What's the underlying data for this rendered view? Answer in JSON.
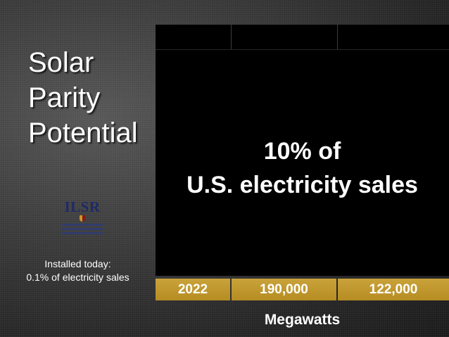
{
  "slide": {
    "title_lines": [
      "Solar",
      "Parity",
      "Potential"
    ],
    "logo_text": "ILSR",
    "installed_note": {
      "line1": "Installed today:",
      "line2": "0.1% of electricity sales"
    },
    "highlight": {
      "line1": "10% of",
      "line2": "U.S. electricity sales"
    },
    "table_row": [
      "2022",
      "190,000",
      "122,000"
    ],
    "units": "Megawatts"
  },
  "colors": {
    "background": "#2e2e2e",
    "table_black": "#000000",
    "gold": "#c29a32",
    "text": "#ffffff",
    "logo_navy": "#1e2a66"
  },
  "icons": {
    "logo": "ilsr-logo"
  }
}
